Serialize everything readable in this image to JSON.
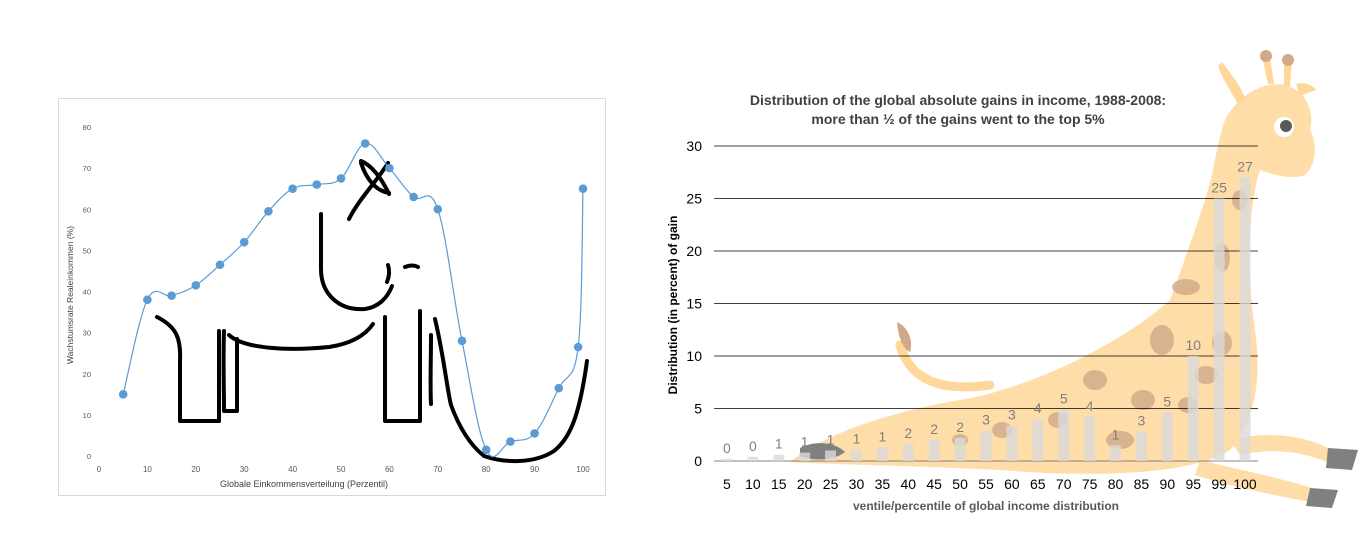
{
  "chart_data": [
    {
      "type": "line",
      "title": "",
      "xlabel": "Globale Einkommensverteilung (Perzentil)",
      "ylabel": "Wachstumsrate Realeinkommen (%)",
      "xlim": [
        0,
        100
      ],
      "ylim": [
        0,
        80
      ],
      "xticks": [
        0,
        10,
        20,
        30,
        40,
        50,
        60,
        70,
        80,
        90,
        100
      ],
      "yticks": [
        0,
        10,
        20,
        30,
        40,
        50,
        60,
        70,
        80
      ],
      "grid": false,
      "colors": {
        "line": "#5b9bd5",
        "marker": "#5b9bd5",
        "drawing": "#000000"
      },
      "decoration": "elephant-outline",
      "series": [
        {
          "x": [
            5,
            10,
            15,
            20,
            25,
            30,
            35,
            40,
            45,
            50,
            55,
            60,
            65,
            70,
            75,
            80,
            85,
            90,
            95,
            99,
            100
          ],
          "values": [
            15,
            38,
            39,
            41.5,
            46.5,
            52,
            59.5,
            65,
            66,
            67.5,
            76,
            70,
            63,
            60,
            28,
            1.5,
            3.5,
            5.5,
            16.5,
            26.5,
            65
          ]
        }
      ]
    },
    {
      "type": "bar",
      "title": "Distribution of the global absolute gains in income, 1988-2008:",
      "subtitle": "more than ½ of the gains went to the top 5%",
      "xlabel": "ventile/percentile of global income distribution",
      "ylabel": "Distribution (in percent) of gain",
      "ylim": [
        0,
        30
      ],
      "yticks": [
        0,
        5,
        10,
        15,
        20,
        25,
        30
      ],
      "grid": true,
      "colors": {
        "bar": "#d9d9d9",
        "label": "#7f7f7f",
        "giraffe": "#ffd79a",
        "spots": "#cfa98a"
      },
      "decoration": "giraffe-illustration",
      "categories": [
        "5",
        "10",
        "15",
        "20",
        "25",
        "30",
        "35",
        "40",
        "45",
        "50",
        "55",
        "60",
        "65",
        "70",
        "75",
        "80",
        "85",
        "90",
        "95",
        "99",
        "100"
      ],
      "values": [
        0.2,
        0.4,
        0.6,
        0.8,
        1,
        1.1,
        1.3,
        1.6,
        2,
        2.2,
        2.9,
        3.4,
        4,
        4.9,
        4.2,
        1.5,
        2.8,
        4.6,
        10,
        25,
        27
      ],
      "data_labels": [
        "0",
        "0",
        "1",
        "1",
        "1",
        "1",
        "1",
        "2",
        "2",
        "2",
        "3",
        "3",
        "4",
        "5",
        "4",
        "1",
        "3",
        "5",
        "10",
        "25",
        "27"
      ]
    }
  ]
}
